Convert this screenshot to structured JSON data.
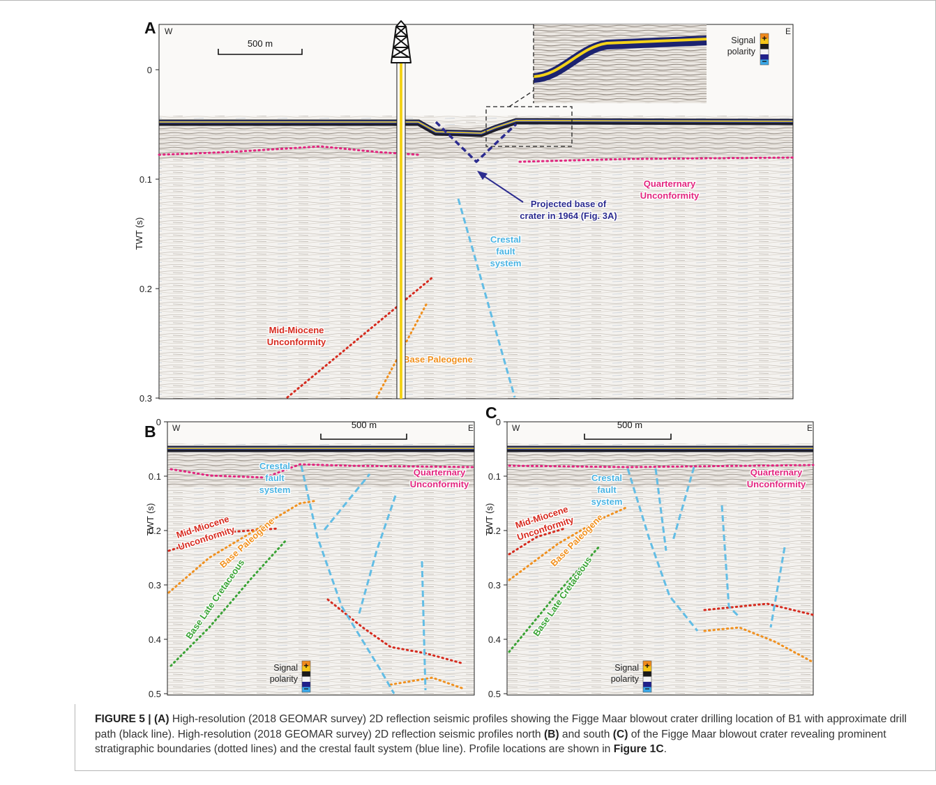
{
  "panels": [
    {
      "label": "A",
      "west": "W",
      "east": "E",
      "scale_bar": "500 m",
      "axis_title": "TWT (s)",
      "yticks": [
        0,
        0.1,
        0.2,
        0.3
      ],
      "annotations": [
        {
          "lines": [
            "Quarternary",
            "Unconformity"
          ],
          "color": "#e2257f"
        },
        {
          "lines": [
            "Projected base of",
            "crater in 1964 (Fig. 3A)"
          ],
          "color": "#2b2b8f"
        },
        {
          "lines": [
            "Crestal",
            "fault",
            "system"
          ],
          "color": "#4bb4e3"
        },
        {
          "lines": [
            "Mid-Miocene",
            "Unconformity"
          ],
          "color": "#d62a1e"
        },
        {
          "lines": [
            "Base Paleogene"
          ],
          "color": "#f0901e"
        }
      ],
      "polarity": {
        "lines": [
          "Signal",
          "polarity"
        ],
        "plus": "+",
        "minus": "−"
      }
    },
    {
      "label": "B",
      "west": "W",
      "east": "E",
      "scale_bar": "500 m",
      "axis_title": "TWT (s)",
      "yticks": [
        0,
        0.1,
        0.2,
        0.3,
        0.4,
        0.5
      ],
      "annotations": [
        {
          "lines": [
            "Quarternary",
            "Unconformity"
          ],
          "color": "#e2257f"
        },
        {
          "lines": [
            "Crestal",
            "fault",
            "system"
          ],
          "color": "#4bb4e3"
        },
        {
          "lines": [
            "Mid-Miocene",
            "Unconformity"
          ],
          "color": "#d62a1e"
        },
        {
          "lines": [
            "Base Paleogene"
          ],
          "color": "#f0901e"
        },
        {
          "lines": [
            "Base Late Cretaceous"
          ],
          "color": "#3aa335"
        }
      ],
      "polarity": {
        "lines": [
          "Signal",
          "polarity"
        ],
        "plus": "+",
        "minus": "−"
      }
    },
    {
      "label": "C",
      "west": "W",
      "east": "E",
      "scale_bar": "500 m",
      "axis_title": "TWT (s)",
      "yticks": [
        0,
        0.1,
        0.2,
        0.3,
        0.4,
        0.5
      ],
      "annotations": [
        {
          "lines": [
            "Quarternary",
            "Unconformity"
          ],
          "color": "#e2257f"
        },
        {
          "lines": [
            "Crestal",
            "fault",
            "system"
          ],
          "color": "#4bb4e3"
        },
        {
          "lines": [
            "Mid-Miocene",
            "Unconformity"
          ],
          "color": "#d62a1e"
        },
        {
          "lines": [
            "Base Paleogene"
          ],
          "color": "#f0901e"
        },
        {
          "lines": [
            "Base Late Cretaceous"
          ],
          "color": "#3aa335"
        }
      ],
      "polarity": {
        "lines": [
          "Signal",
          "polarity"
        ],
        "plus": "+",
        "minus": "−"
      }
    }
  ],
  "caption": {
    "segments": [
      "FIGURE 5 | (A)",
      " High-resolution (2018 GEOMAR survey) 2D reflection seismic profiles showing the Figge Maar blowout crater drilling location of B1 with approximate drill path (black line). High-resolution (2018 GEOMAR survey) 2D reflection seismic profiles north ",
      "(B)",
      " and south ",
      "(C)",
      " of the Figge Maar blowout crater revealing prominent stratigraphic boundaries (dotted lines) and the crestal fault system (blue line). Profile locations are shown in ",
      "Figure 1C",
      "."
    ]
  }
}
